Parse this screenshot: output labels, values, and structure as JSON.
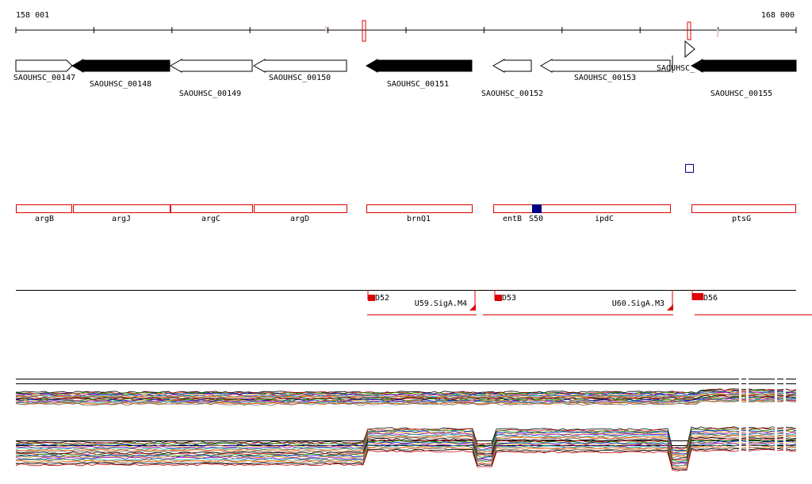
{
  "ruler": {
    "start_label": "158 001",
    "end_label": "168 000"
  },
  "genes": [
    {
      "label": "SAOUHSC_00147",
      "strand": "+",
      "fill": "white"
    },
    {
      "label": "SAOUHSC_00148",
      "strand": "-",
      "fill": "black"
    },
    {
      "label": "SAOUHSC_00149",
      "strand": "-",
      "fill": "white"
    },
    {
      "label": "SAOUHSC_00150",
      "strand": "-",
      "fill": "white"
    },
    {
      "label": "SAOUHSC_00151",
      "strand": "-",
      "fill": "black"
    },
    {
      "label": "SAOUHSC_00152",
      "strand": "-",
      "fill": "white"
    },
    {
      "label": "SAOUHSC_00153",
      "strand": "-",
      "fill": "white"
    },
    {
      "label": "SAOUHSC_",
      "strand": "+",
      "fill": "white"
    },
    {
      "label": "SAOUHSC_00155",
      "strand": "-",
      "fill": "black"
    }
  ],
  "annotations": [
    "argB",
    "argJ",
    "argC",
    "argD",
    "brnQ1",
    "entB",
    "S50",
    "ipdC",
    "ptsG"
  ],
  "regulatory": [
    "D52",
    "U59.SigA.M4",
    "D53",
    "U60.SigA.M3",
    "D56"
  ],
  "colors": {
    "accent_red": "#dd0000",
    "navy_marker": "#000080",
    "track_colors": [
      "#000000",
      "#cc0000",
      "#009900",
      "#0000cc",
      "#cc9900",
      "#9900cc",
      "#00aaaa",
      "#996633",
      "#ff6600",
      "#777777"
    ]
  }
}
